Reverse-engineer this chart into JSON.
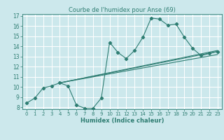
{
  "title": "Courbe de l'humidex pour Anse (69)",
  "xlabel": "Humidex (Indice chaleur)",
  "xlim": [
    -0.5,
    23.5
  ],
  "ylim": [
    7.8,
    17.2
  ],
  "xticks": [
    0,
    1,
    2,
    3,
    4,
    5,
    6,
    7,
    8,
    9,
    10,
    11,
    12,
    13,
    14,
    15,
    16,
    17,
    18,
    19,
    20,
    21,
    22,
    23
  ],
  "yticks": [
    8,
    9,
    10,
    11,
    12,
    13,
    14,
    15,
    16,
    17
  ],
  "bg_color": "#cce8ec",
  "line_color": "#2e7d72",
  "grid_color": "#ffffff",
  "series1_x": [
    0,
    1,
    2,
    3,
    4,
    5,
    6,
    7,
    8,
    9,
    10,
    11,
    12,
    13,
    14,
    15,
    16,
    17,
    18,
    19,
    20,
    21,
    22,
    23
  ],
  "series1_y": [
    8.4,
    8.9,
    9.9,
    10.1,
    10.4,
    10.1,
    8.2,
    7.9,
    7.9,
    8.9,
    14.4,
    13.4,
    12.8,
    13.6,
    14.9,
    16.8,
    16.7,
    16.1,
    16.2,
    14.9,
    13.8,
    13.1,
    13.3,
    13.5
  ],
  "series2_x": [
    4,
    23
  ],
  "series2_y": [
    10.4,
    13.5
  ],
  "series3_x": [
    4,
    23
  ],
  "series3_y": [
    10.4,
    13.6
  ],
  "series4_x": [
    4,
    23
  ],
  "series4_y": [
    10.4,
    13.2
  ],
  "title_fontsize": 6,
  "xlabel_fontsize": 6,
  "tick_fontsize": 5
}
